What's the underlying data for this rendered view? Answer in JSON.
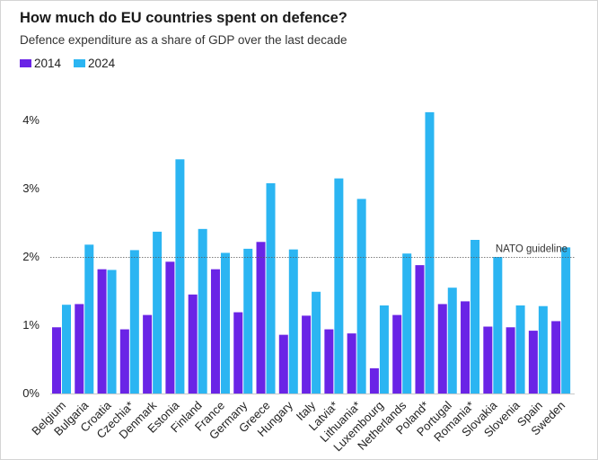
{
  "chart_data": {
    "type": "bar",
    "title": "How much do EU countries spent on defence?",
    "subtitle": "Defence expenditure as a share of GDP over the last decade",
    "xlabel": "",
    "ylabel": "",
    "ylim": [
      0,
      4.4
    ],
    "yticks": [
      0,
      1,
      2,
      3,
      4
    ],
    "ytick_labels": [
      "0%",
      "1%",
      "2%",
      "3%",
      "4%"
    ],
    "grid": false,
    "legend_position": "top-left",
    "categories": [
      "Belgium",
      "Bulgaria",
      "Croatia",
      "Czechia*",
      "Denmark",
      "Estonia",
      "Finland",
      "France",
      "Germany",
      "Greece",
      "Hungary",
      "Italy",
      "Latvia*",
      "Lithuania*",
      "Luxembourg",
      "Netherlands",
      "Poland*",
      "Portugal",
      "Romania*",
      "Slovakia",
      "Slovenia",
      "Spain",
      "Sweden"
    ],
    "series": [
      {
        "name": "2014",
        "color": "#6a24e6",
        "values": [
          0.97,
          1.31,
          1.82,
          0.94,
          1.15,
          1.93,
          1.45,
          1.82,
          1.19,
          2.22,
          0.86,
          1.14,
          0.94,
          0.88,
          0.37,
          1.15,
          1.88,
          1.31,
          1.35,
          0.98,
          0.97,
          0.92,
          1.06
        ]
      },
      {
        "name": "2024",
        "color": "#2bb5f2",
        "values": [
          1.3,
          2.18,
          1.81,
          2.1,
          2.37,
          3.43,
          2.41,
          2.06,
          2.12,
          3.08,
          2.11,
          1.49,
          3.15,
          2.85,
          1.29,
          2.05,
          4.12,
          1.55,
          2.25,
          2.0,
          1.29,
          1.28,
          2.14
        ]
      }
    ],
    "reference_line": {
      "value": 2.0,
      "label": "NATO guideline"
    }
  }
}
